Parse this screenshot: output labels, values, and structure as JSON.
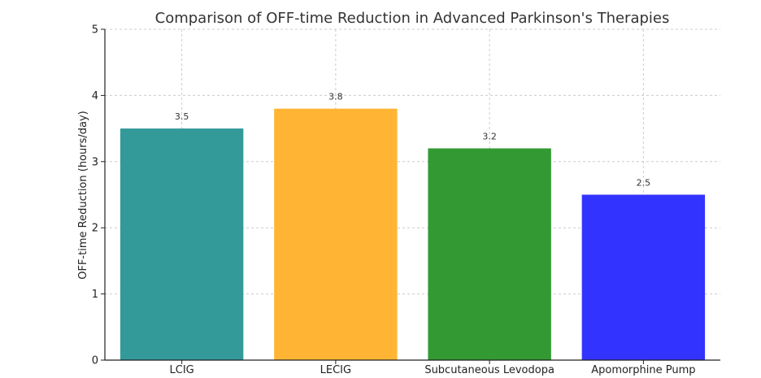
{
  "chart_data": {
    "type": "bar",
    "title": "Comparison of OFF-time Reduction in Advanced Parkinson's Therapies",
    "xlabel": "",
    "ylabel": "OFF-time Reduction (hours/day)",
    "ylim": [
      0,
      5
    ],
    "yticks": [
      "0",
      "1",
      "2",
      "3",
      "4",
      "5"
    ],
    "grid": true,
    "categories": [
      "LCIG",
      "LECIG",
      "Subcutaneous Levodopa",
      "Apomorphine Pump"
    ],
    "values": [
      3.5,
      3.8,
      3.2,
      2.5
    ],
    "value_labels": [
      "3.5",
      "3.8",
      "3.2",
      "2.5"
    ],
    "colors": [
      "#339999",
      "#ffb533",
      "#339933",
      "#3333ff"
    ]
  }
}
